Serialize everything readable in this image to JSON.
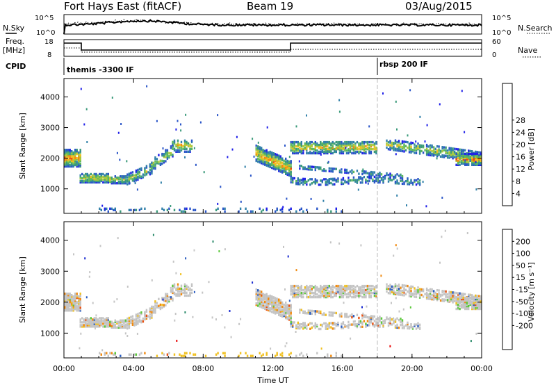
{
  "header": {
    "station": "Fort Hays East (fitACF)",
    "beam": "Beam 19",
    "date": "03/Aug/2015"
  },
  "top_panels": {
    "nsky_label": "N.Sky",
    "nsky_ticks": [
      "10^5",
      "10^0"
    ],
    "nsearch_label": "N.Search",
    "nsearch_ticks": [
      "10^5",
      "10^0"
    ],
    "freq_label": "Freq.",
    "freq_unit": "[MHz]",
    "freq_ticks": [
      "18",
      "8"
    ],
    "nave_label": "Nave",
    "nave_ticks": [
      "60",
      "0"
    ],
    "cpid_label": "CPID",
    "cpid_segments": [
      {
        "label": "themis -3300 IF",
        "start_hour": 0
      },
      {
        "label": "rbsp 200 IF",
        "start_hour": 18
      }
    ]
  },
  "chart_data": [
    {
      "type": "heatmap",
      "name": "power-panel",
      "ylabel": "Slant Range [km]",
      "xlim": [
        0,
        24
      ],
      "ylim": [
        200,
        4600
      ],
      "yticks": [
        1000,
        2000,
        3000,
        4000
      ],
      "colorbar": {
        "label": "Power [dB]",
        "ticks": [
          "4",
          "8",
          "12",
          "16",
          "20",
          "24",
          "28"
        ],
        "colors": [
          "#1f1fe8",
          "#2a55c8",
          "#2f7fa8",
          "#3a9a7a",
          "#5cb85c",
          "#a8c83c",
          "#f0c020",
          "#f08a10",
          "#e84010",
          "#e80000"
        ]
      }
    },
    {
      "type": "heatmap",
      "name": "velocity-panel",
      "ylabel": "Slant Range [km]",
      "xlabel": "Time UT",
      "xlim": [
        0,
        24
      ],
      "ylim": [
        200,
        4600
      ],
      "yticks": [
        1000,
        2000,
        3000,
        4000
      ],
      "xticks": [
        "00:00",
        "04:00",
        "08:00",
        "12:00",
        "16:00",
        "20:00",
        "00:00"
      ],
      "colorbar": {
        "label": "Velocity [m s⁻¹]",
        "ticks": [
          "200",
          "100",
          "50",
          "15",
          "-15",
          "-50",
          "-100",
          "-200"
        ],
        "colors": [
          "#1a2ad0",
          "#2a5cc0",
          "#2a8a6a",
          "#5ac83a",
          "#c8c8c8",
          "#c8c8c8",
          "#f0c020",
          "#f08a10",
          "#e85010",
          "#e80000"
        ]
      },
      "ground_scatter_color": "#b8b8b8"
    }
  ]
}
